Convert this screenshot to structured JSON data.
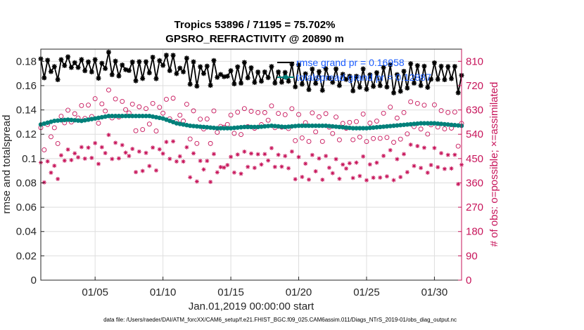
{
  "chart_data": {
    "type": "line",
    "title_line1": "Tropics 53896 / 71195 = 75.702%",
    "title_line2": "GPSRO_REFRACTIVITY @ 20890 m",
    "xlabel": "Jan.01,2019 00:00:00 start",
    "ylabel_left": "rmse and totalspread",
    "ylabel_right": "# of obs: o=possible; ×=assimilated",
    "x_range_days": [
      1.0,
      32.0
    ],
    "x_ticks": [
      {
        "day": 5,
        "label": "01/05"
      },
      {
        "day": 10,
        "label": "01/10"
      },
      {
        "day": 15,
        "label": "01/15"
      },
      {
        "day": 20,
        "label": "01/20"
      },
      {
        "day": 25,
        "label": "01/25"
      },
      {
        "day": 30,
        "label": "01/30"
      }
    ],
    "y_left_range": [
      0,
      0.19
    ],
    "y_left_ticks": [
      "0",
      "0.02",
      "0.04",
      "0.06",
      "0.08",
      "0.1",
      "0.12",
      "0.14",
      "0.16",
      "0.18"
    ],
    "y_left_tick_values": [
      0,
      0.02,
      0.04,
      0.06,
      0.08,
      0.1,
      0.12,
      0.14,
      0.16,
      0.18
    ],
    "y_right_range": [
      0,
      855
    ],
    "y_right_ticks": [
      "0",
      "90",
      "180",
      "270",
      "360",
      "450",
      "540",
      "630",
      "720",
      "810"
    ],
    "y_right_tick_values": [
      0,
      90,
      180,
      270,
      360,
      450,
      540,
      630,
      720,
      810
    ],
    "legend": [
      "rmse grand pr = 0.16958",
      "totalspread grand pr = 0.12887"
    ],
    "series": [
      {
        "name": "rmse",
        "color": "#000000",
        "marker": "asterisk",
        "anchor_days": [
          1,
          2,
          3,
          4,
          5,
          6,
          7,
          8,
          9,
          10,
          11,
          12,
          13,
          14,
          15,
          16,
          17,
          18,
          19,
          20,
          21,
          22,
          23,
          24,
          25,
          26,
          27,
          28,
          29,
          30,
          31,
          32
        ],
        "anchor_values": [
          0.171,
          0.175,
          0.177,
          0.177,
          0.176,
          0.18,
          0.175,
          0.172,
          0.176,
          0.177,
          0.172,
          0.171,
          0.17,
          0.169,
          0.167,
          0.168,
          0.166,
          0.168,
          0.167,
          0.168,
          0.167,
          0.166,
          0.167,
          0.166,
          0.165,
          0.166,
          0.166,
          0.168,
          0.167,
          0.167,
          0.167,
          0.165
        ]
      },
      {
        "name": "totalspread",
        "color": "#00807a",
        "marker": "dot",
        "anchor_days": [
          1,
          2,
          3,
          4,
          5,
          6,
          7,
          8,
          9,
          10,
          11,
          12,
          13,
          14,
          15,
          16,
          17,
          18,
          19,
          20,
          21,
          22,
          23,
          24,
          25,
          26,
          27,
          28,
          29,
          30,
          31,
          32
        ],
        "anchor_values": [
          0.128,
          0.131,
          0.132,
          0.131,
          0.133,
          0.135,
          0.135,
          0.135,
          0.135,
          0.133,
          0.129,
          0.127,
          0.126,
          0.125,
          0.125,
          0.126,
          0.126,
          0.127,
          0.126,
          0.127,
          0.127,
          0.127,
          0.126,
          0.125,
          0.125,
          0.126,
          0.127,
          0.128,
          0.129,
          0.129,
          0.128,
          0.127
        ]
      },
      {
        "name": "obs possible",
        "color": "#c7145a",
        "marker": "circle",
        "axis": "right",
        "anchor_days": [
          1,
          2,
          3,
          4,
          5,
          6,
          7,
          8,
          9,
          10,
          11,
          12,
          13,
          14,
          15,
          16,
          17,
          18,
          19,
          20,
          21,
          22,
          23,
          24,
          25,
          26,
          27,
          28,
          29,
          30,
          31,
          32
        ],
        "anchor_values": [
          500,
          560,
          590,
          620,
          640,
          660,
          650,
          600,
          610,
          620,
          600,
          580,
          560,
          560,
          580,
          570,
          590,
          600,
          590,
          560,
          580,
          570,
          560,
          580,
          560,
          560,
          580,
          600,
          600,
          580,
          570,
          560
        ]
      },
      {
        "name": "obs assimilated",
        "color": "#c7145a",
        "marker": "asterisk",
        "axis": "right",
        "anchor_days": [
          1,
          2,
          3,
          4,
          5,
          6,
          7,
          8,
          9,
          10,
          11,
          12,
          13,
          14,
          15,
          16,
          17,
          18,
          19,
          20,
          21,
          22,
          23,
          24,
          25,
          26,
          27,
          28,
          29,
          30,
          31,
          32
        ],
        "anchor_values": [
          380,
          420,
          450,
          470,
          480,
          500,
          490,
          440,
          450,
          470,
          450,
          430,
          410,
          410,
          430,
          420,
          440,
          450,
          440,
          410,
          430,
          420,
          410,
          430,
          410,
          410,
          430,
          450,
          450,
          430,
          420,
          410
        ]
      }
    ]
  },
  "footer": {
    "data_file": "data file: /Users/raeder/DAI/ATM_forcXX/CAM6_setup/f.e21.FHIST_BGC.f09_025.CAM6assim.011/Diags_NTrS_2019-01/obs_diag_output.nc"
  }
}
